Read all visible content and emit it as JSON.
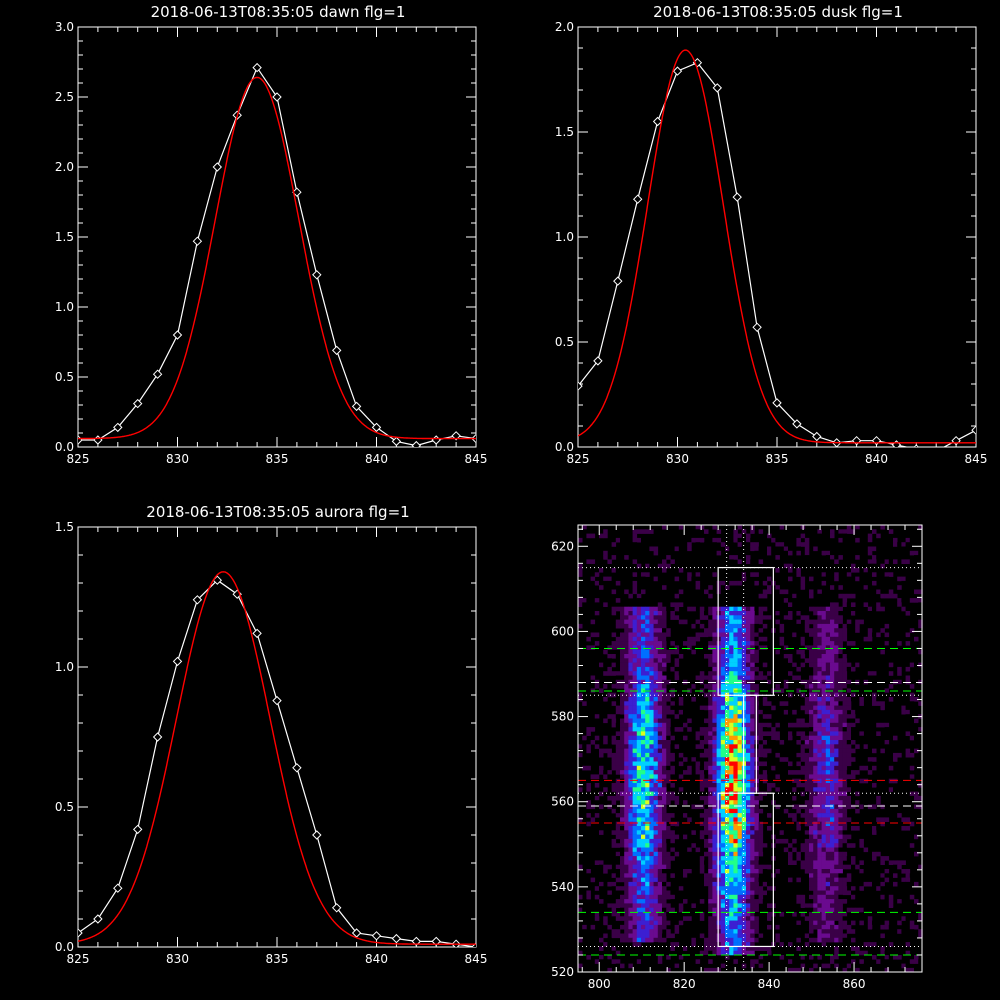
{
  "chart_data": [
    {
      "type": "line",
      "title": "2018-06-13T08:35:05 dawn flg=1",
      "xlim": [
        825,
        845
      ],
      "ylim": [
        0,
        3.0
      ],
      "xticks": [
        825,
        830,
        835,
        840,
        845
      ],
      "xtick_labels": [
        "825",
        "830",
        "835",
        "840",
        "845"
      ],
      "yticks": [
        0,
        0.5,
        1.0,
        1.5,
        2.0,
        2.5,
        3.0
      ],
      "ytick_labels": [
        "0.0",
        "0.5",
        "1.0",
        "1.5",
        "2.0",
        "2.5",
        "3.0"
      ],
      "series": [
        {
          "style": "data",
          "color": "#ffffff",
          "marker": "diamond",
          "x": [
            825,
            826,
            827,
            828,
            829,
            830,
            831,
            832,
            833,
            834,
            835,
            836,
            837,
            838,
            839,
            840,
            841,
            842,
            843,
            844,
            845
          ],
          "y": [
            0.05,
            0.05,
            0.14,
            0.31,
            0.52,
            0.8,
            1.47,
            2.0,
            2.37,
            2.71,
            2.5,
            1.82,
            1.23,
            0.69,
            0.29,
            0.14,
            0.04,
            0.01,
            0.05,
            0.08,
            0.06
          ]
        },
        {
          "style": "fit",
          "color": "#ff0000",
          "model": "gaussian",
          "amplitude": 2.58,
          "center": 834.0,
          "sigma": 2.1,
          "offset": 0.06
        }
      ]
    },
    {
      "type": "line",
      "title": "2018-06-13T08:35:05 dusk flg=1",
      "xlim": [
        825,
        845
      ],
      "ylim": [
        0,
        2.0
      ],
      "xticks": [
        825,
        830,
        835,
        840,
        845
      ],
      "xtick_labels": [
        "825",
        "830",
        "835",
        "840",
        "845"
      ],
      "yticks": [
        0,
        0.5,
        1.0,
        1.5,
        2.0
      ],
      "ytick_labels": [
        "0.0",
        "0.5",
        "1.0",
        "1.5",
        "2.0"
      ],
      "series": [
        {
          "style": "data",
          "color": "#ffffff",
          "marker": "diamond",
          "x": [
            825,
            826,
            827,
            828,
            829,
            830,
            831,
            832,
            833,
            834,
            835,
            836,
            837,
            838,
            839,
            840,
            841,
            842,
            843,
            844,
            845
          ],
          "y": [
            0.29,
            0.41,
            0.79,
            1.18,
            1.55,
            1.79,
            1.83,
            1.71,
            1.19,
            0.57,
            0.21,
            0.11,
            0.05,
            0.02,
            0.03,
            0.03,
            0.01,
            -0.01,
            -0.02,
            0.03,
            0.08
          ]
        },
        {
          "style": "fit",
          "color": "#ff0000",
          "model": "gaussian",
          "amplitude": 1.87,
          "center": 830.4,
          "sigma": 1.9,
          "offset": 0.02
        }
      ]
    },
    {
      "type": "line",
      "title": "2018-06-13T08:35:05 aurora flg=1",
      "xlim": [
        825,
        845
      ],
      "ylim": [
        0,
        1.5
      ],
      "xticks": [
        825,
        830,
        835,
        840,
        845
      ],
      "xtick_labels": [
        "825",
        "830",
        "835",
        "840",
        "845"
      ],
      "yticks": [
        0,
        0.5,
        1.0,
        1.5
      ],
      "ytick_labels": [
        "0.0",
        "0.5",
        "1.0",
        "1.5"
      ],
      "series": [
        {
          "style": "data",
          "color": "#ffffff",
          "marker": "diamond",
          "x": [
            825,
            826,
            827,
            828,
            829,
            830,
            831,
            832,
            833,
            834,
            835,
            836,
            837,
            838,
            839,
            840,
            841,
            842,
            843,
            844,
            845
          ],
          "y": [
            0.05,
            0.1,
            0.21,
            0.42,
            0.75,
            1.02,
            1.24,
            1.31,
            1.26,
            1.12,
            0.88,
            0.64,
            0.4,
            0.14,
            0.05,
            0.04,
            0.03,
            0.02,
            0.02,
            0.01,
            0.0
          ]
        },
        {
          "style": "fit",
          "color": "#ff0000",
          "model": "gaussian",
          "amplitude": 1.33,
          "center": 832.3,
          "sigma": 2.35,
          "offset": 0.01
        }
      ]
    },
    {
      "type": "heatmap",
      "title": "",
      "xlim": [
        795,
        876
      ],
      "ylim": [
        520,
        625
      ],
      "xticks": [
        800,
        820,
        840,
        860
      ],
      "xtick_labels": [
        "800",
        "820",
        "840",
        "860"
      ],
      "yticks": [
        520,
        540,
        560,
        580,
        600,
        620
      ],
      "ytick_labels": [
        "520",
        "540",
        "560",
        "580",
        "600",
        "620"
      ],
      "colormap": [
        "#000000",
        "#3a0047",
        "#6a0a8f",
        "#3c1fd2",
        "#0070ff",
        "#00d0ff",
        "#22ff88",
        "#d8ff20",
        "#ff9a00",
        "#ff0000"
      ],
      "emission_bands": [
        {
          "x_center": 810,
          "width": 4,
          "y_from": 528,
          "y_to": 606,
          "peak": 0.7
        },
        {
          "x_center": 831,
          "width": 4,
          "y_from": 525,
          "y_to": 606,
          "peak": 1.0
        },
        {
          "x_center": 853,
          "width": 4,
          "y_from": 528,
          "y_to": 606,
          "peak": 0.35
        }
      ],
      "boxes": [
        {
          "x": [
            828,
            841
          ],
          "y": [
            585,
            615
          ],
          "color": "#ffffff"
        },
        {
          "x": [
            828,
            841
          ],
          "y": [
            526,
            562
          ],
          "color": "#ffffff"
        },
        {
          "x": [
            834,
            837
          ],
          "y": [
            562,
            585
          ],
          "color": "#ffffff"
        }
      ],
      "horizontal_lines": [
        {
          "y": 615,
          "color": "#ffffff",
          "dash": "dotted"
        },
        {
          "y": 596,
          "color": "#00ff00",
          "dash": "dashed"
        },
        {
          "y": 588,
          "color": "#ffffff",
          "dash": "dashed"
        },
        {
          "y": 586,
          "color": "#00ff00",
          "dash": "dashed"
        },
        {
          "y": 585,
          "color": "#ffffff",
          "dash": "dotted"
        },
        {
          "y": 565,
          "color": "#ff0000",
          "dash": "dashed"
        },
        {
          "y": 562,
          "color": "#ffffff",
          "dash": "dotted"
        },
        {
          "y": 559,
          "color": "#ffffff",
          "dash": "dashed"
        },
        {
          "y": 555,
          "color": "#ff0000",
          "dash": "dashed"
        },
        {
          "y": 534,
          "color": "#00ff00",
          "dash": "dashed"
        },
        {
          "y": 526,
          "color": "#ffffff",
          "dash": "dotted"
        },
        {
          "y": 524,
          "color": "#00ff00",
          "dash": "dashed"
        }
      ],
      "vertical_lines": [
        {
          "x": 830,
          "color": "#ffffff",
          "dash": "dotted"
        },
        {
          "x": 834,
          "color": "#ffffff",
          "dash": "dotted"
        }
      ]
    }
  ]
}
